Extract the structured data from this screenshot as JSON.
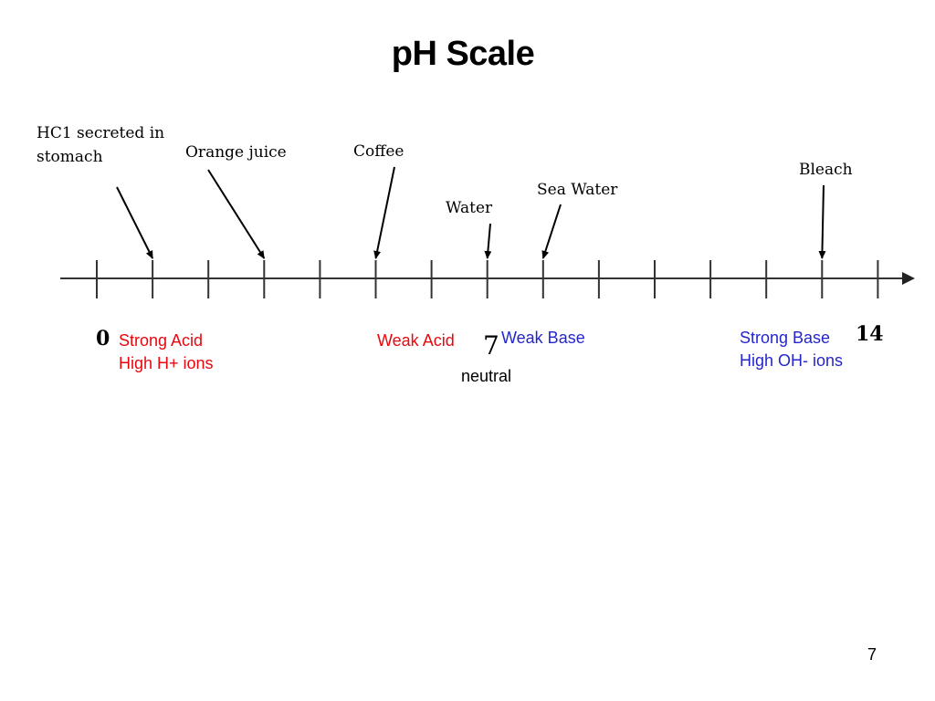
{
  "title": "pH Scale",
  "scale": {
    "min": 0,
    "max": 14,
    "end_labels": {
      "min": "0",
      "neutral": "7",
      "max": "14"
    }
  },
  "examples": [
    {
      "id": "hcl",
      "label": "HC1 secreted in\nstomach",
      "ph": 1
    },
    {
      "id": "orange-juice",
      "label": "Orange juice",
      "ph": 3
    },
    {
      "id": "coffee",
      "label": "Coffee",
      "ph": 5
    },
    {
      "id": "water",
      "label": "Water",
      "ph": 7
    },
    {
      "id": "sea-water",
      "label": "Sea Water",
      "ph": 8
    },
    {
      "id": "bleach",
      "label": "Bleach",
      "ph": 13
    }
  ],
  "zones": {
    "strong_acid": {
      "line1": "Strong Acid",
      "line2": "High H+ ions",
      "color": "#e8080e"
    },
    "weak_acid": {
      "text": "Weak Acid",
      "color": "#e8080e"
    },
    "weak_base": {
      "text": "Weak Base",
      "color": "#2426cc"
    },
    "strong_base": {
      "line1": "Strong Base",
      "line2": "High OH- ions",
      "color": "#2426cc"
    },
    "neutral": {
      "text": "neutral"
    }
  },
  "page_number": "7"
}
